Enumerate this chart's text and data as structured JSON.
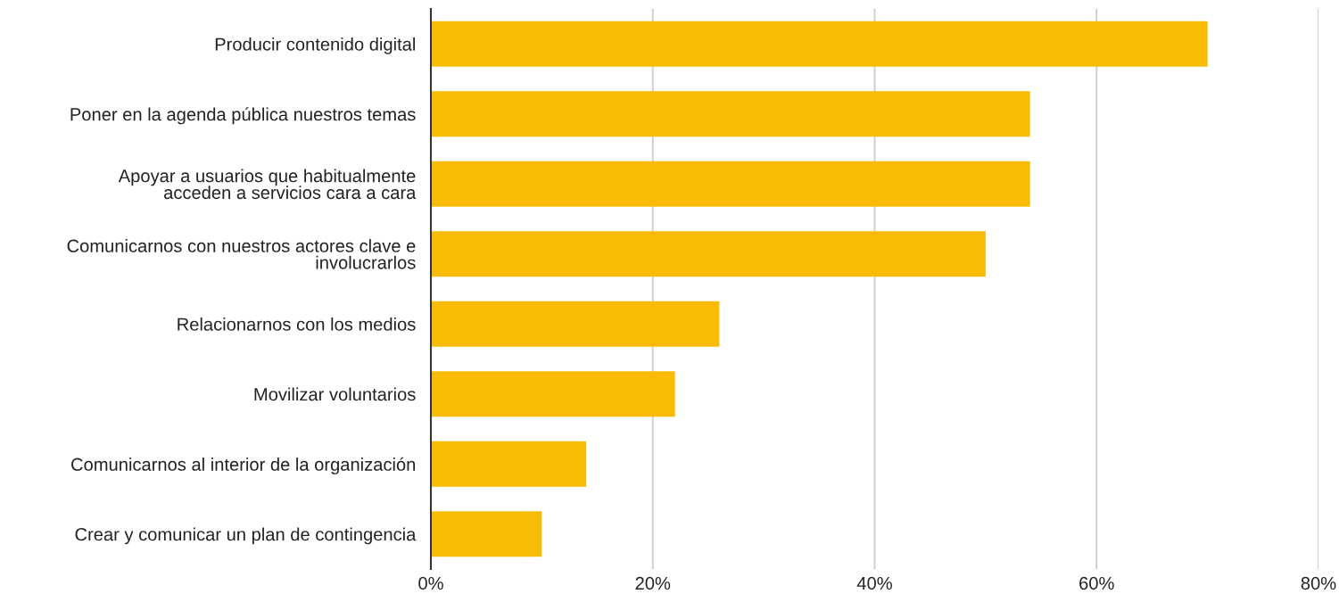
{
  "chart_data": {
    "type": "bar",
    "orientation": "horizontal",
    "categories": [
      "Producir contenido digital",
      "Poner en la agenda pública nuestros temas",
      "Apoyar a usuarios que habitualmente\nacceden a servicios cara a cara",
      "Comunicarnos con nuestros actores clave e\ninvolucrarlos",
      "Relacionarnos con los medios",
      "Movilizar voluntarios",
      "Comunicarnos al interior de la organización",
      "Crear y comunicar un plan de contingencia"
    ],
    "values": [
      70,
      54,
      54,
      50,
      26,
      22,
      14,
      10
    ],
    "color": "#f9bc06",
    "xlim": [
      0,
      80
    ],
    "xticks": [
      {
        "value": 0,
        "label": "0%"
      },
      {
        "value": 20,
        "label": "20%"
      },
      {
        "value": 40,
        "label": "40%"
      },
      {
        "value": 60,
        "label": "60%"
      },
      {
        "value": 80,
        "label": "80%"
      }
    ],
    "grid": "x"
  }
}
